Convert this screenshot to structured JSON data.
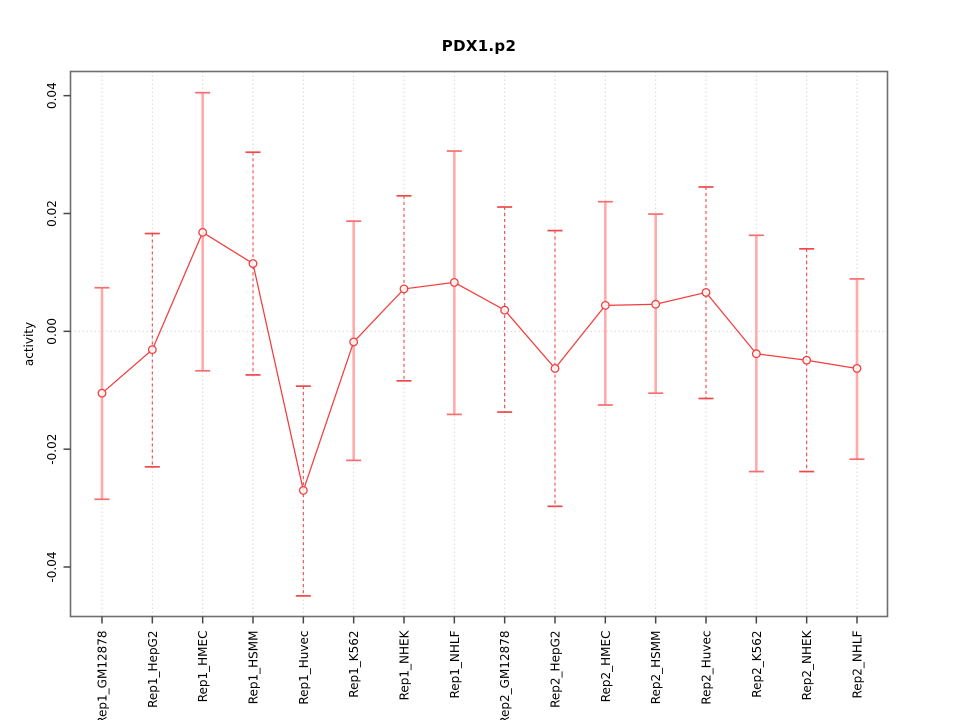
{
  "chart_data": {
    "type": "line",
    "title": "PDX1.p2",
    "ylabel": "activity",
    "xlabel": "",
    "categories": [
      "Rep1_GM12878",
      "Rep1_HepG2",
      "Rep1_HMEC",
      "Rep1_HSMM",
      "Rep1_Huvec",
      "Rep1_K562",
      "Rep1_NHEK",
      "Rep1_NHLF",
      "Rep2_GM12878",
      "Rep2_HepG2",
      "Rep2_HMEC",
      "Rep2_HSMM",
      "Rep2_Huvec",
      "Rep2_K562",
      "Rep2_NHEK",
      "Rep2_NHLF"
    ],
    "series": [
      {
        "name": "activity",
        "means": [
          -0.0105,
          -0.0031,
          0.0168,
          0.0115,
          -0.027,
          -0.0018,
          0.0072,
          0.0083,
          0.0036,
          -0.0063,
          0.0044,
          0.0046,
          0.0066,
          -0.0038,
          -0.0049,
          -0.0063
        ],
        "upper": [
          0.0074,
          0.0166,
          0.0405,
          0.0304,
          -0.0093,
          0.0187,
          0.023,
          0.0306,
          0.0211,
          0.0171,
          0.022,
          0.0199,
          0.0245,
          0.0163,
          0.014,
          0.0089
        ],
        "lower": [
          -0.0285,
          -0.023,
          -0.0067,
          -0.0074,
          -0.0449,
          -0.0219,
          -0.0084,
          -0.0141,
          -0.0137,
          -0.0297,
          -0.0125,
          -0.0105,
          -0.0114,
          -0.0238,
          -0.0238,
          -0.0217
        ],
        "bar_styles": [
          "light",
          "dashed",
          "light",
          "dashed",
          "dashed",
          "light",
          "dashed",
          "light",
          "dashed",
          "dashed",
          "light",
          "light",
          "dashed",
          "light",
          "dashed",
          "light"
        ]
      }
    ],
    "ytick_labels": [
      "0.04",
      "0.02",
      "0.00",
      "-0.02",
      "-0.04"
    ],
    "ytick_values": [
      0.04,
      0.02,
      0.0,
      -0.02,
      -0.04
    ],
    "ylim": [
      -0.0484,
      0.0441
    ],
    "grid": {
      "vertical": "dotted at each category",
      "horizontal_at": 0,
      "style": "dotted"
    },
    "legend": "none",
    "colors": {
      "point": "#f23d3d",
      "line": "#f23d3d",
      "bar_light": "#ffabab",
      "bar_dashed": "#ee4848",
      "cap": "#f76e6e",
      "grid": "#dadada",
      "box": "#6e6e6e",
      "tick": "#474747",
      "text": "#000000"
    }
  }
}
